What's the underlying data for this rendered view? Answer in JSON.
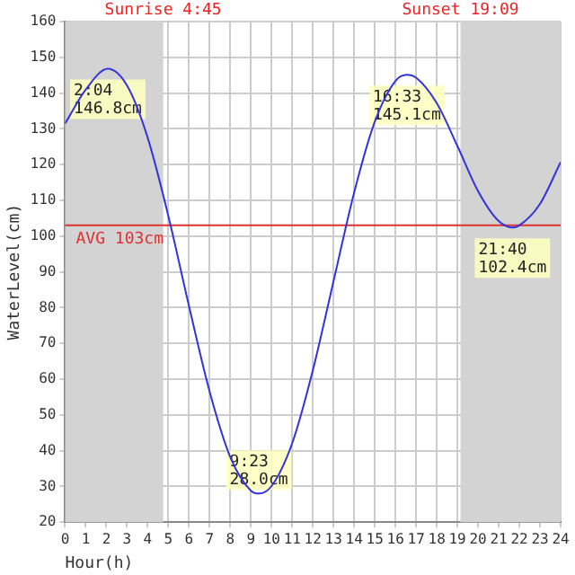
{
  "chart_data": {
    "type": "line",
    "xlabel": "Hour(h)",
    "ylabel": "WaterLevel(cm)",
    "x": [
      0,
      1,
      2.067,
      3,
      4,
      5,
      6,
      7,
      8,
      9,
      9.383,
      10,
      11,
      12,
      13,
      14,
      15,
      16,
      16.55,
      17,
      18,
      19,
      20,
      21,
      21.667,
      22,
      23,
      24
    ],
    "series": [
      {
        "color": "#3333dd",
        "values": [
          131.5,
          141,
          146.8,
          142.1,
          127.5,
          105.6,
          80.4,
          56.5,
          38.2,
          28.8,
          28.0,
          30.1,
          42.1,
          62.5,
          87.4,
          112.2,
          132.0,
          143.4,
          145.1,
          144.3,
          137.2,
          125.2,
          112.6,
          104.2,
          102.4,
          103,
          109,
          120.7
        ]
      }
    ],
    "xlim": [
      0,
      24
    ],
    "xticks": [
      0,
      1,
      2,
      3,
      4,
      5,
      6,
      7,
      8,
      9,
      10,
      11,
      12,
      13,
      14,
      15,
      16,
      17,
      18,
      19,
      20,
      21,
      22,
      23,
      24
    ],
    "ylim": [
      20,
      160
    ],
    "yticks": [
      20,
      30,
      40,
      50,
      60,
      70,
      80,
      90,
      100,
      110,
      120,
      130,
      140,
      150,
      160
    ],
    "grid": true,
    "legend": false,
    "marker": "none",
    "line_style": "solid",
    "bands": [
      {
        "axis": "x",
        "from": 0,
        "to": 4.75,
        "label": "Sunrise 4:45",
        "color": "#d3d3d3"
      },
      {
        "axis": "x",
        "from": 19.15,
        "to": 24,
        "label": "Sunset 19:09",
        "color": "#d3d3d3"
      }
    ],
    "ref_lines": [
      {
        "axis": "y",
        "value": 103,
        "label": "AVG 103cm",
        "color": "#e03030"
      }
    ],
    "annotations": [
      {
        "text": "2:04\n146.8cm",
        "x": 2.067,
        "y": 146.8
      },
      {
        "text": "9:23\n28.0cm",
        "x": 9.383,
        "y": 28.0
      },
      {
        "text": "16:33\n145.1cm",
        "x": 16.55,
        "y": 145.1
      },
      {
        "text": "21:40\n102.4cm",
        "x": 21.667,
        "y": 102.4
      }
    ]
  }
}
